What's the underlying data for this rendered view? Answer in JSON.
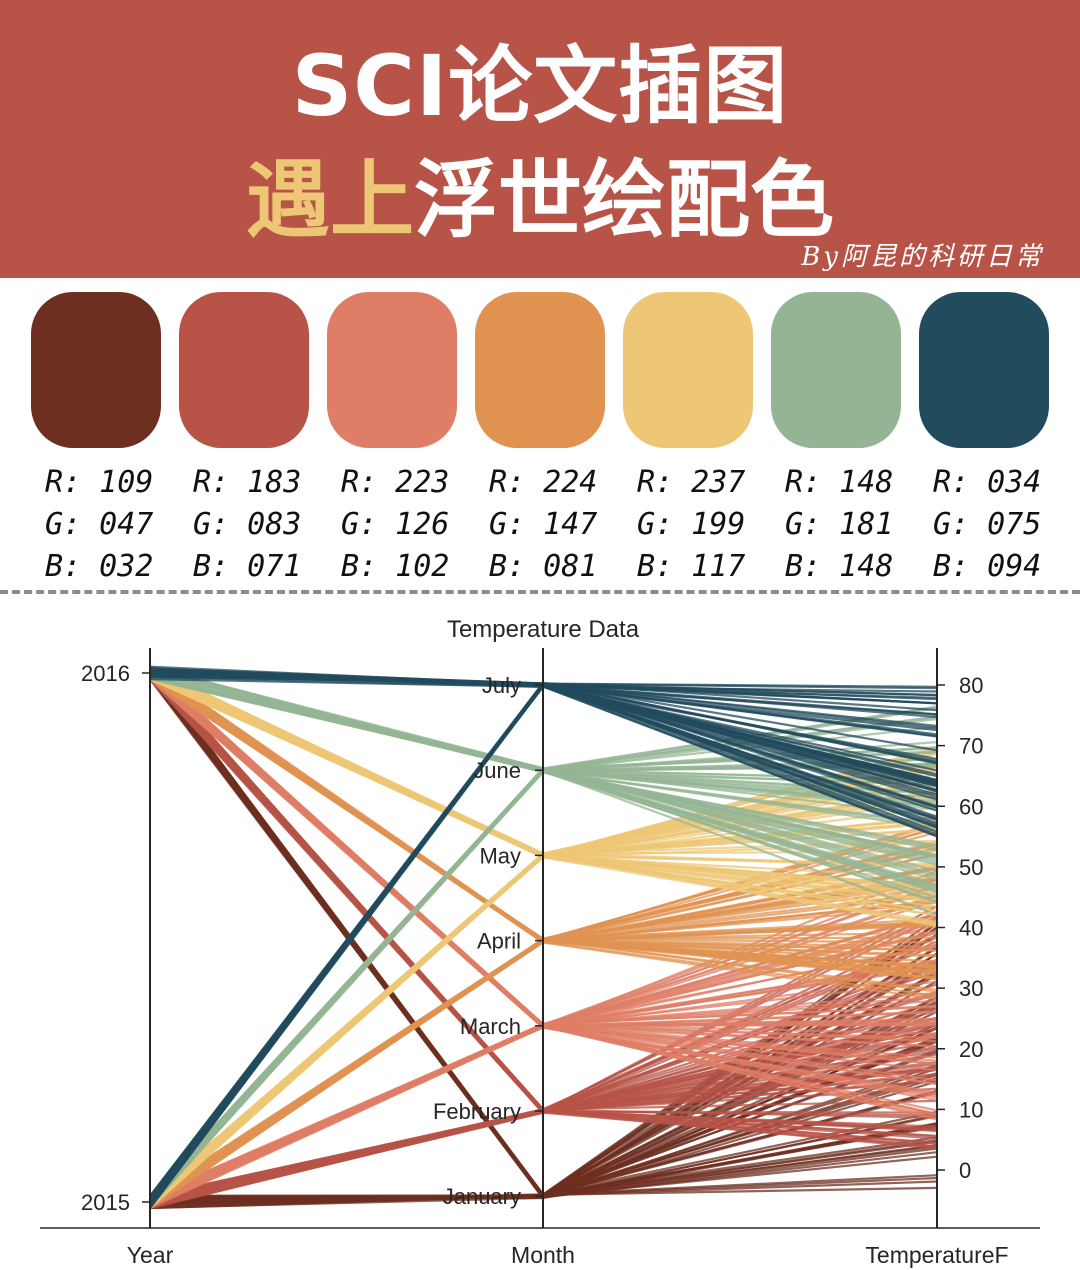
{
  "header": {
    "title_line1": "SCI论文插图",
    "title_line2_highlight": "遇上",
    "title_line2_rest": "浮世绘配色",
    "byline": "By阿昆的科研日常",
    "background": "#b75347",
    "highlight_color": "#edc775"
  },
  "palette": [
    {
      "hex": "#6d2f20",
      "r": "R: 109",
      "g": "G: 047",
      "b": "B: 032"
    },
    {
      "hex": "#b75347",
      "r": "R: 183",
      "g": "G: 083",
      "b": "B: 071"
    },
    {
      "hex": "#df7e66",
      "r": "R: 223",
      "g": "G: 126",
      "b": "B: 102"
    },
    {
      "hex": "#e09351",
      "r": "R: 224",
      "g": "G: 147",
      "b": "B: 081"
    },
    {
      "hex": "#edc775",
      "r": "R: 237",
      "g": "G: 199",
      "b": "B: 117"
    },
    {
      "hex": "#94b594",
      "r": "R: 148",
      "g": "G: 181",
      "b": "B: 148"
    },
    {
      "hex": "#224b5e",
      "r": "R: 034",
      "g": "G: 075",
      "b": "B: 094"
    }
  ],
  "chart_data": {
    "type": "parallel_coordinates",
    "title": "Temperature Data",
    "axes": [
      {
        "name": "Year",
        "ticks": [
          "2015",
          "2016"
        ],
        "range": [
          2015,
          2016
        ]
      },
      {
        "name": "Month",
        "ticks": [
          "January",
          "February",
          "March",
          "April",
          "May",
          "June",
          "July"
        ]
      },
      {
        "name": "TemperatureF",
        "ticks": [
          0,
          10,
          20,
          30,
          40,
          50,
          60,
          70,
          80
        ],
        "range": [
          -5,
          85
        ]
      }
    ],
    "month_colors": {
      "January": "#6d2f20",
      "February": "#b75347",
      "March": "#df7e66",
      "April": "#e09351",
      "May": "#edc775",
      "June": "#94b594",
      "July": "#224b5e"
    },
    "series": [
      {
        "month": "January",
        "temperature_range": [
          -3,
          42
        ]
      },
      {
        "month": "February",
        "temperature_range": [
          3,
          45
        ]
      },
      {
        "month": "March",
        "temperature_range": [
          8,
          50
        ]
      },
      {
        "month": "April",
        "temperature_range": [
          28,
          58
        ]
      },
      {
        "month": "May",
        "temperature_range": [
          40,
          70
        ]
      },
      {
        "month": "June",
        "temperature_range": [
          42,
          77
        ]
      },
      {
        "month": "July",
        "temperature_range": [
          55,
          80
        ]
      }
    ],
    "records_per_month_per_year": 31,
    "grid": false,
    "legend": "none"
  }
}
